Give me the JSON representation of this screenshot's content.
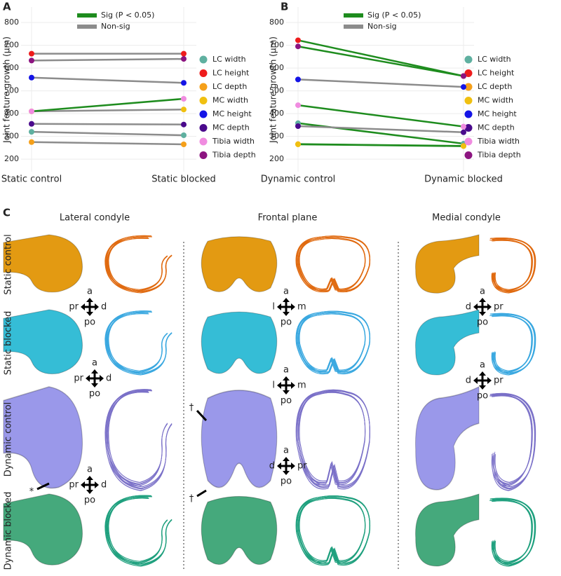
{
  "panel_labels": [
    "A",
    "B",
    "C"
  ],
  "chart_data": [
    {
      "type": "line",
      "y_label": "Joint feature growth (μm)",
      "categories": [
        "Static control",
        "Static blocked"
      ],
      "legend_lines": [
        {
          "name": "Sig (P < 0.05)",
          "color": "#1e8c1e"
        },
        {
          "name": "Non-sig",
          "color": "#8c8c8c"
        }
      ],
      "series": [
        {
          "name": "LC width",
          "color": "#5fb0a0",
          "line_color": "#8c8c8c",
          "values": [
            320,
            305
          ]
        },
        {
          "name": "LC height",
          "color": "#ee1c1c",
          "line_color": "#8c8c8c",
          "values": [
            663,
            663
          ]
        },
        {
          "name": "LC depth",
          "color": "#f5a01a",
          "line_color": "#8c8c8c",
          "values": [
            275,
            265
          ]
        },
        {
          "name": "MC width",
          "color": "#f0c010",
          "line_color": "#8c8c8c",
          "values": [
            410,
            418
          ]
        },
        {
          "name": "MC height",
          "color": "#1414e6",
          "line_color": "#8c8c8c",
          "values": [
            558,
            535
          ]
        },
        {
          "name": "MC depth",
          "color": "#4a0a8c",
          "line_color": "#8c8c8c",
          "values": [
            355,
            352
          ]
        },
        {
          "name": "Tibia width",
          "color": "#f08ce0",
          "line_color": "#1e8c1e",
          "values": [
            410,
            465
          ]
        },
        {
          "name": "Tibia depth",
          "color": "#8c1480",
          "line_color": "#8c8c8c",
          "values": [
            633,
            640
          ]
        }
      ],
      "ylim": [
        145,
        868
      ],
      "yticks": [
        200,
        300,
        400,
        500,
        600,
        700,
        800
      ],
      "grid": true
    },
    {
      "type": "line",
      "y_label": "Joint feature growth (μm)",
      "categories": [
        "Dynamic control",
        "Dynamic blocked"
      ],
      "legend_lines": [
        {
          "name": "Sig (P < 0.05)",
          "color": "#1e8c1e"
        },
        {
          "name": "Non-sig",
          "color": "#8c8c8c"
        }
      ],
      "series": [
        {
          "name": "LC width",
          "color": "#5fb0a0",
          "line_color": "#1e8c1e",
          "values": [
            358,
            268
          ]
        },
        {
          "name": "LC height",
          "color": "#ee1c1c",
          "line_color": "#1e8c1e",
          "values": [
            722,
            565
          ]
        },
        {
          "name": "LC depth",
          "color": "#f5a01a",
          "line_color": "#1e8c1e",
          "values": [
            266,
            258
          ]
        },
        {
          "name": "MC width",
          "color": "#f0c010",
          "line_color": "#1e8c1e",
          "values": [
            265,
            257
          ]
        },
        {
          "name": "MC height",
          "color": "#1414e6",
          "line_color": "#8c8c8c",
          "values": [
            550,
            517
          ]
        },
        {
          "name": "MC depth",
          "color": "#4a0a8c",
          "line_color": "#8c8c8c",
          "values": [
            345,
            318
          ]
        },
        {
          "name": "Tibia width",
          "color": "#f08ce0",
          "line_color": "#1e8c1e",
          "values": [
            437,
            343
          ]
        },
        {
          "name": "Tibia depth",
          "color": "#8c1480",
          "line_color": "#1e8c1e",
          "values": [
            695,
            565
          ]
        }
      ],
      "ylim": [
        145,
        868
      ],
      "yticks": [
        200,
        300,
        400,
        500,
        600,
        700,
        800
      ],
      "grid": true
    }
  ],
  "panel_c": {
    "columns": [
      "Lateral condyle",
      "Frontal plane",
      "Medial condyle"
    ],
    "rows": [
      "Static control",
      "Static blocked",
      "Dynamic control",
      "Dynamic blocked"
    ],
    "orientation": [
      {
        "top": "a",
        "left": "pr",
        "right": "d",
        "bottom": "po"
      },
      {
        "top": "a",
        "left": "pr",
        "right": "d",
        "bottom": "po"
      },
      {
        "top": "a",
        "left": "pr",
        "right": "d",
        "bottom": "po"
      },
      {
        "top": "a",
        "left": "l",
        "right": "m",
        "bottom": "po"
      },
      {
        "top": "a",
        "left": "l",
        "right": "m",
        "bottom": "po"
      },
      {
        "top": "a",
        "left": "d",
        "right": "pr",
        "bottom": "po"
      },
      {
        "top": "a",
        "left": "d",
        "right": "pr",
        "bottom": "po"
      },
      {
        "top": "a",
        "left": "d",
        "right": "pr",
        "bottom": "po"
      }
    ],
    "markers": [
      "*",
      "†",
      "†"
    ]
  }
}
